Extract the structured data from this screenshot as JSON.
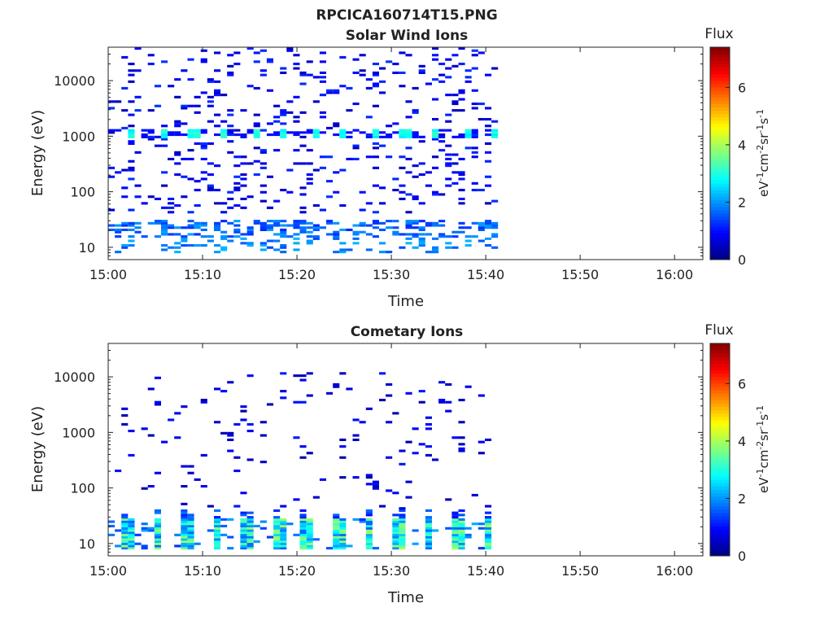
{
  "figure_title": "RPCICA160714T15.PNG",
  "chart_data": [
    {
      "type": "heatmap",
      "title": "Solar Wind Ions",
      "xlabel": "Time",
      "ylabel": "Energy (eV)",
      "x_ticks": [
        "15:00",
        "15:10",
        "15:20",
        "15:30",
        "15:40",
        "15:50",
        "16:00"
      ],
      "x_range_minutes": [
        0,
        63
      ],
      "data_end_minute": 41.5,
      "y_scale": "log",
      "ylim": [
        6,
        40000
      ],
      "y_ticks": [
        "10",
        "100",
        "1000",
        "10000"
      ],
      "colorbar": {
        "title": "Flux",
        "label": "eV-1cm-2sr-1s-1",
        "range": [
          0,
          7.4
        ],
        "ticks": [
          "0",
          "2",
          "4",
          "6"
        ]
      },
      "features": [
        {
          "energy_ev": 1100,
          "flux": 3.0,
          "period_min": 3.2,
          "start_min": 1.9,
          "note": ""
        },
        {
          "energy_ev": 22,
          "flux": 1.7,
          "note": ""
        },
        {
          "energy_ev": 12,
          "flux": 1.9,
          "note": ""
        }
      ]
    },
    {
      "type": "heatmap",
      "title": "Cometary Ions",
      "xlabel": "Time",
      "ylabel": "Energy (eV)",
      "x_ticks": [
        "15:00",
        "15:10",
        "15:20",
        "15:30",
        "15:40",
        "15:50",
        "16:00"
      ],
      "x_range_minutes": [
        0,
        63
      ],
      "data_end_minute": 41.0,
      "y_scale": "log",
      "ylim": [
        6,
        40000
      ],
      "y_ticks": [
        "10",
        "100",
        "1000",
        "10000"
      ],
      "colorbar": {
        "title": "Flux",
        "label": "eV-1cm-2sr-1s-1",
        "range": [
          0,
          7.4
        ],
        "ticks": [
          "0",
          "2",
          "4",
          "6"
        ]
      },
      "features": [
        {
          "energy_ev_range": [
            8,
            28
          ],
          "flux": 2.8,
          "period_min": 3.2,
          "start_min": 1.0,
          "note": ""
        }
      ]
    }
  ]
}
